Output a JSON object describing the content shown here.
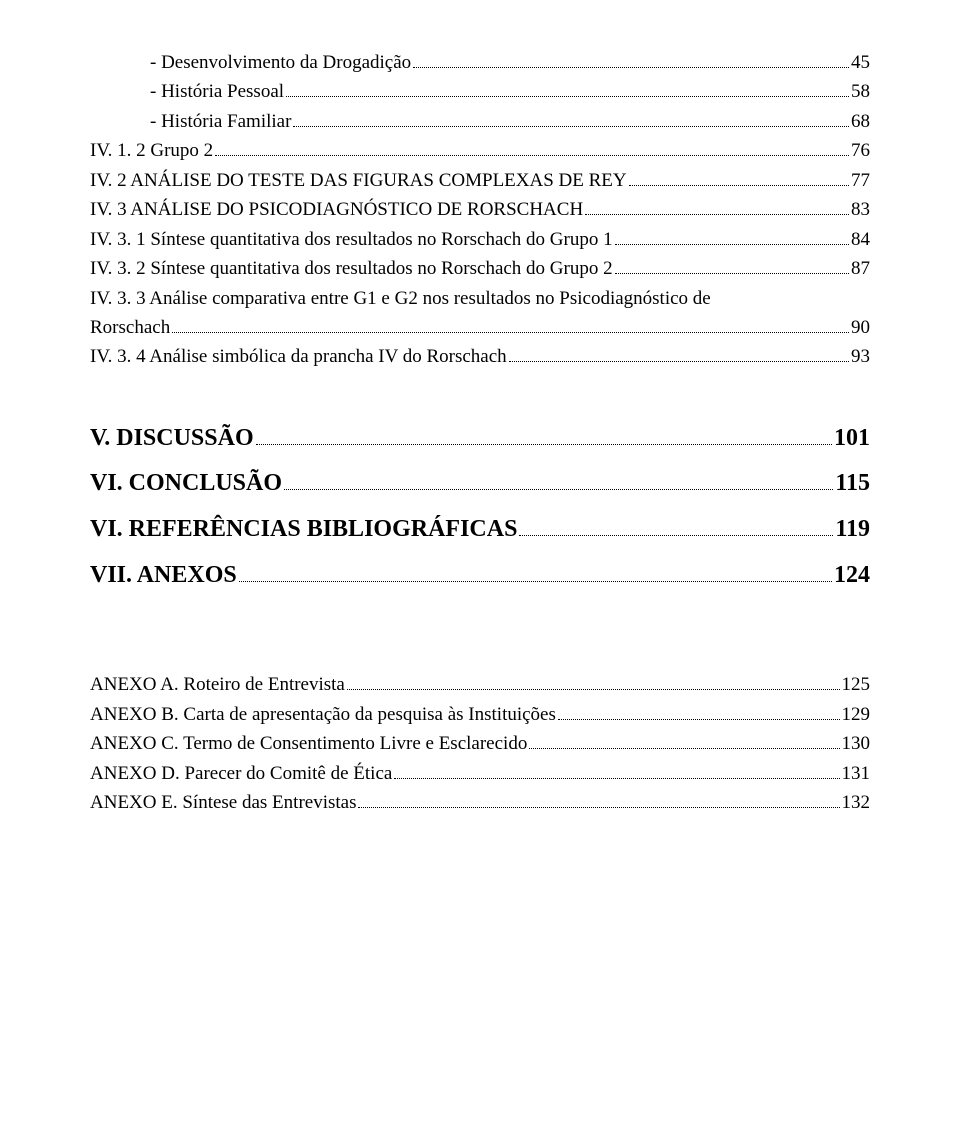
{
  "colors": {
    "text": "#000000",
    "background": "#ffffff"
  },
  "typography": {
    "base_font_family": "Times New Roman",
    "base_font_size_pt": 14,
    "heading_font_size_pt": 18
  },
  "toc": {
    "group_a": [
      {
        "indent": 1,
        "bold": false,
        "label": "-   Desenvolvimento da Drogadição",
        "page": "45"
      },
      {
        "indent": 1,
        "bold": false,
        "label": "-   História Pessoal",
        "page": "58"
      },
      {
        "indent": 1,
        "bold": false,
        "label": "-   História Familiar",
        "page": "68"
      },
      {
        "indent": 0,
        "bold": false,
        "label": "IV. 1. 2 Grupo 2",
        "page": "76"
      },
      {
        "indent": 0,
        "bold": false,
        "label": "IV. 2 ANÁLISE DO TESTE DAS FIGURAS COMPLEXAS DE REY",
        "page": "77"
      },
      {
        "indent": 0,
        "bold": false,
        "label": "IV. 3 ANÁLISE DO PSICODIAGNÓSTICO DE RORSCHACH",
        "page": "83"
      },
      {
        "indent": 0,
        "bold": false,
        "label": "IV. 3. 1 Síntese quantitativa dos resultados no Rorschach  do Grupo 1",
        "page": "84"
      },
      {
        "indent": 0,
        "bold": false,
        "label": "IV. 3. 2 Síntese quantitativa dos resultados no Rorschach  do Grupo 2",
        "page": "87"
      }
    ],
    "multiline_a": {
      "line1": "IV. 3. 3 Análise comparativa entre G1 e G2 nos resultados no Psicodiagnóstico de",
      "line2": "Rorschach",
      "page": "90"
    },
    "item_after_multi": {
      "indent": 0,
      "bold": false,
      "label": "IV. 3. 4 Análise simbólica da prancha IV do Rorschach",
      "page": "93"
    },
    "headings": [
      {
        "label": "V. DISCUSSÃO",
        "page": "101"
      },
      {
        "label": "VI. CONCLUSÃO",
        "page": "115"
      },
      {
        "label": "VI. REFERÊNCIAS BIBLIOGRÁFICAS",
        "page": "119"
      },
      {
        "label": "VII. ANEXOS",
        "page": "124"
      }
    ],
    "annexes": [
      {
        "label": "ANEXO A. Roteiro de Entrevista",
        "page": "125"
      },
      {
        "label": "ANEXO B. Carta de apresentação da pesquisa às Instituições",
        "page": "129"
      },
      {
        "label": "ANEXO C. Termo de Consentimento Livre e Esclarecido",
        "page": "130"
      },
      {
        "label": "ANEXO D. Parecer do Comitê de Ética",
        "page": "131"
      },
      {
        "label": "ANEXO E. Síntese das Entrevistas",
        "page": "132"
      }
    ]
  }
}
